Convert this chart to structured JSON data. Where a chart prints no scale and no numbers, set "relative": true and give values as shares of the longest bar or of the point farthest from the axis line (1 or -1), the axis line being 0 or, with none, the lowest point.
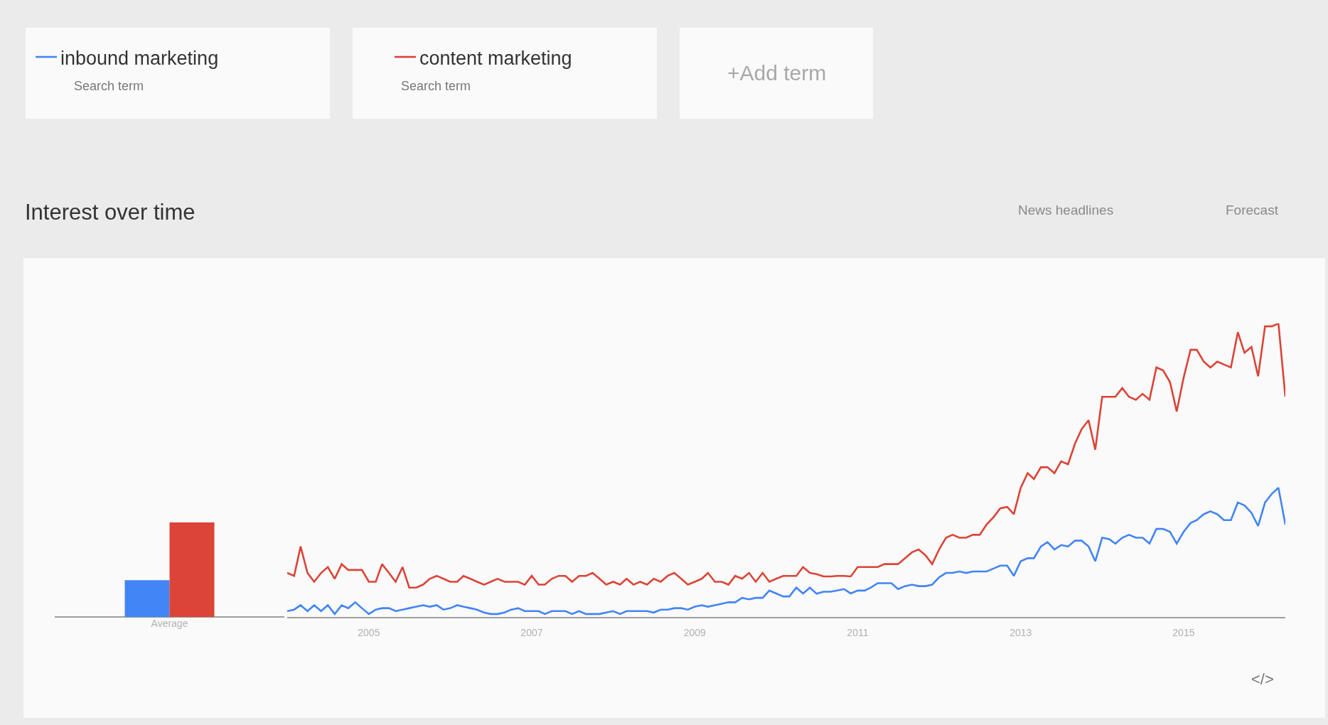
{
  "chart_data": [
    {
      "type": "line",
      "title": "Interest over time",
      "relative": true,
      "legend": "top left",
      "x": [
        "2004-01",
        "2004-02",
        "2004-03",
        "2004-04",
        "2004-05",
        "2004-06",
        "2004-07",
        "2004-08",
        "2004-09",
        "2004-10",
        "2004-11",
        "2004-12",
        "2005-01",
        "2005-02",
        "2005-03",
        "2005-04",
        "2005-05",
        "2005-06",
        "2005-07",
        "2005-08",
        "2005-09",
        "2005-10",
        "2005-11",
        "2005-12",
        "2006-01",
        "2006-02",
        "2006-03",
        "2006-04",
        "2006-05",
        "2006-06",
        "2006-07",
        "2006-08",
        "2006-09",
        "2006-10",
        "2006-11",
        "2006-12",
        "2007-01",
        "2007-02",
        "2007-03",
        "2007-04",
        "2007-05",
        "2007-06",
        "2007-07",
        "2007-08",
        "2007-09",
        "2007-10",
        "2007-11",
        "2007-12",
        "2008-01",
        "2008-02",
        "2008-03",
        "2008-04",
        "2008-05",
        "2008-06",
        "2008-07",
        "2008-08",
        "2008-09",
        "2008-10",
        "2008-11",
        "2008-12",
        "2009-01",
        "2009-02",
        "2009-03",
        "2009-04",
        "2009-05",
        "2009-06",
        "2009-07",
        "2009-08",
        "2009-09",
        "2009-10",
        "2009-11",
        "2009-12",
        "2010-01",
        "2010-02",
        "2010-03",
        "2010-04",
        "2010-05",
        "2010-06",
        "2010-07",
        "2010-08",
        "2010-09",
        "2010-10",
        "2010-11",
        "2010-12",
        "2011-01",
        "2011-02",
        "2011-03",
        "2011-04",
        "2011-05",
        "2011-06",
        "2011-07",
        "2011-08",
        "2011-09",
        "2011-10",
        "2011-11",
        "2011-12",
        "2012-01",
        "2012-02",
        "2012-03",
        "2012-04",
        "2012-05",
        "2012-06",
        "2012-07",
        "2012-08",
        "2012-09",
        "2012-10",
        "2012-11",
        "2012-12",
        "2013-01",
        "2013-02",
        "2013-03",
        "2013-04",
        "2013-05",
        "2013-06",
        "2013-07",
        "2013-08",
        "2013-09",
        "2013-10",
        "2013-11",
        "2013-12",
        "2014-01",
        "2014-02",
        "2014-03",
        "2014-04",
        "2014-05",
        "2014-06",
        "2014-07",
        "2014-08",
        "2014-09",
        "2014-10",
        "2014-11",
        "2014-12",
        "2015-01",
        "2015-02",
        "2015-03",
        "2015-04",
        "2015-05",
        "2015-06",
        "2015-07",
        "2015-08",
        "2015-09",
        "2015-10",
        "2015-11",
        "2015-12",
        "2016-01",
        "2016-02",
        "2016-03",
        "2016-04"
      ],
      "xlim": [
        "2004-01",
        "2016-04"
      ],
      "xticks": [
        "2005",
        "2007",
        "2009",
        "2011",
        "2013",
        "2015"
      ],
      "series": [
        {
          "name": "inbound marketing",
          "color": "#4285f4",
          "values": [
            0.02,
            0.025,
            0.04,
            0.02,
            0.04,
            0.02,
            0.04,
            0.01,
            0.04,
            0.03,
            0.05,
            0.03,
            0.01,
            0.025,
            0.03,
            0.03,
            0.02,
            0.025,
            0.03,
            0.035,
            0.04,
            0.035,
            0.04,
            0.025,
            0.03,
            0.04,
            0.035,
            0.03,
            0.025,
            0.015,
            0.01,
            0.01,
            0.015,
            0.025,
            0.03,
            0.02,
            0.02,
            0.02,
            0.01,
            0.02,
            0.02,
            0.02,
            0.01,
            0.02,
            0.01,
            0.01,
            0.01,
            0.015,
            0.02,
            0.01,
            0.02,
            0.02,
            0.02,
            0.02,
            0.015,
            0.025,
            0.025,
            0.03,
            0.03,
            0.025,
            0.035,
            0.04,
            0.035,
            0.04,
            0.045,
            0.05,
            0.05,
            0.065,
            0.06,
            0.065,
            0.065,
            0.09,
            0.08,
            0.07,
            0.07,
            0.1,
            0.08,
            0.1,
            0.079,
            0.086,
            0.086,
            0.09,
            0.095,
            0.08,
            0.09,
            0.09,
            0.1,
            0.115,
            0.115,
            0.115,
            0.095,
            0.105,
            0.11,
            0.105,
            0.105,
            0.11,
            0.135,
            0.15,
            0.15,
            0.155,
            0.15,
            0.155,
            0.155,
            0.155,
            0.165,
            0.175,
            0.175,
            0.14,
            0.19,
            0.2,
            0.2,
            0.24,
            0.255,
            0.23,
            0.245,
            0.24,
            0.26,
            0.26,
            0.24,
            0.19,
            0.27,
            0.265,
            0.25,
            0.27,
            0.28,
            0.27,
            0.27,
            0.25,
            0.3,
            0.3,
            0.29,
            0.25,
            0.29,
            0.32,
            0.33,
            0.35,
            0.36,
            0.35,
            0.33,
            0.33,
            0.39,
            0.38,
            0.355,
            0.31,
            0.39,
            0.42,
            0.44,
            0.315
          ]
        },
        {
          "name": "content marketing",
          "color": "#db4437",
          "values": [
            0.15,
            0.14,
            0.24,
            0.15,
            0.12,
            0.15,
            0.17,
            0.13,
            0.18,
            0.16,
            0.16,
            0.16,
            0.12,
            0.12,
            0.18,
            0.15,
            0.12,
            0.17,
            0.1,
            0.1,
            0.11,
            0.13,
            0.14,
            0.13,
            0.12,
            0.12,
            0.14,
            0.13,
            0.12,
            0.11,
            0.12,
            0.13,
            0.12,
            0.12,
            0.12,
            0.11,
            0.14,
            0.11,
            0.11,
            0.13,
            0.14,
            0.14,
            0.12,
            0.14,
            0.14,
            0.15,
            0.13,
            0.11,
            0.12,
            0.11,
            0.13,
            0.11,
            0.12,
            0.11,
            0.13,
            0.12,
            0.14,
            0.15,
            0.13,
            0.11,
            0.12,
            0.13,
            0.15,
            0.12,
            0.12,
            0.11,
            0.14,
            0.13,
            0.15,
            0.12,
            0.15,
            0.12,
            0.13,
            0.14,
            0.14,
            0.14,
            0.17,
            0.15,
            0.146,
            0.138,
            0.138,
            0.14,
            0.14,
            0.138,
            0.17,
            0.17,
            0.17,
            0.17,
            0.18,
            0.18,
            0.18,
            0.2,
            0.22,
            0.23,
            0.21,
            0.18,
            0.23,
            0.27,
            0.28,
            0.27,
            0.27,
            0.28,
            0.28,
            0.315,
            0.34,
            0.37,
            0.375,
            0.35,
            0.44,
            0.49,
            0.47,
            0.51,
            0.51,
            0.49,
            0.53,
            0.52,
            0.59,
            0.64,
            0.67,
            0.57,
            0.75,
            0.75,
            0.75,
            0.78,
            0.75,
            0.74,
            0.76,
            0.74,
            0.85,
            0.84,
            0.8,
            0.7,
            0.815,
            0.91,
            0.91,
            0.87,
            0.85,
            0.87,
            0.86,
            0.85,
            0.97,
            0.9,
            0.92,
            0.82,
            0.99,
            0.99,
            1,
            0.75
          ]
        }
      ],
      "annotations": [
        "Search term",
        "Search term",
        "+Add term",
        "News headlines",
        "Forecast",
        "</>"
      ]
    },
    {
      "type": "bar",
      "relative": true,
      "categories": [
        null
      ],
      "xlabel": "Average",
      "series": [
        {
          "color": "#4285f4",
          "values": [
            0.39
          ]
        },
        {
          "color": "#db4437",
          "values": [
            1
          ]
        }
      ]
    }
  ]
}
